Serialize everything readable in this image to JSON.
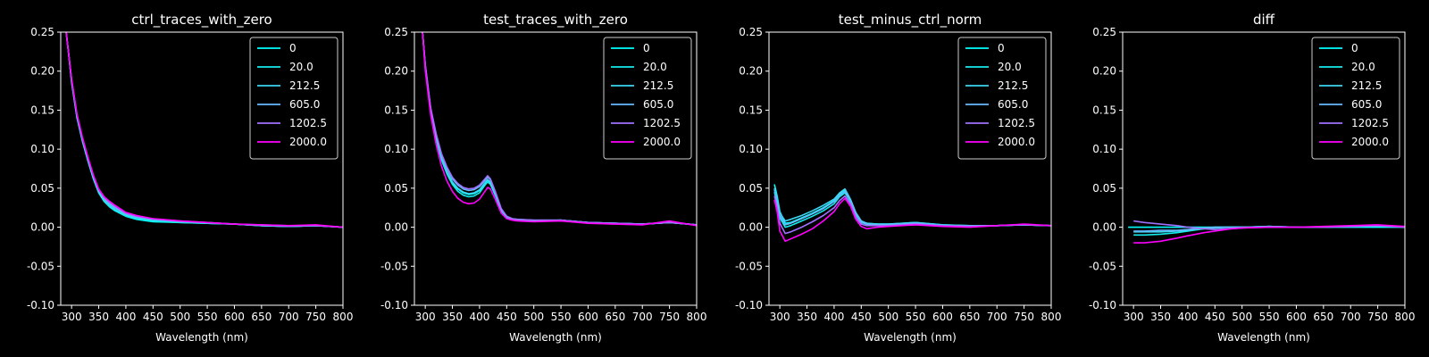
{
  "chart_data": [
    {
      "type": "line",
      "title": "ctrl_traces_with_zero",
      "xlabel": "Wavelength (nm)",
      "ylabel": "",
      "xlim": [
        280,
        800
      ],
      "ylim": [
        -0.1,
        0.25
      ],
      "xticks": [
        300,
        350,
        400,
        450,
        500,
        550,
        600,
        650,
        700,
        750,
        800
      ],
      "yticks": [
        -0.1,
        -0.05,
        0.0,
        0.05,
        0.1,
        0.15,
        0.2,
        0.25
      ],
      "grid": false,
      "legend_position": "top-right",
      "x": [
        290,
        295,
        300,
        310,
        320,
        330,
        340,
        350,
        360,
        370,
        380,
        400,
        420,
        450,
        500,
        550,
        600,
        650,
        700,
        750,
        800
      ],
      "series": [
        {
          "name": "0",
          "color": "#00ffff",
          "values": [
            0.25,
            0.22,
            0.185,
            0.14,
            0.11,
            0.085,
            0.062,
            0.044,
            0.033,
            0.026,
            0.021,
            0.014,
            0.01,
            0.007,
            0.006,
            0.005,
            0.004,
            0.002,
            0.001,
            0.002,
            0.0
          ]
        },
        {
          "name": "20.0",
          "color": "#14ebeb",
          "values": [
            0.25,
            0.22,
            0.186,
            0.141,
            0.111,
            0.086,
            0.063,
            0.045,
            0.034,
            0.027,
            0.022,
            0.015,
            0.011,
            0.008,
            0.006,
            0.005,
            0.004,
            0.002,
            0.001,
            0.002,
            0.0
          ]
        },
        {
          "name": "212.5",
          "color": "#3dd6f2",
          "values": [
            0.25,
            0.22,
            0.187,
            0.142,
            0.112,
            0.087,
            0.064,
            0.046,
            0.035,
            0.028,
            0.023,
            0.016,
            0.012,
            0.009,
            0.007,
            0.005,
            0.004,
            0.002,
            0.001,
            0.002,
            0.0
          ]
        },
        {
          "name": "605.0",
          "color": "#66b8ff",
          "values": [
            0.25,
            0.22,
            0.188,
            0.143,
            0.113,
            0.088,
            0.065,
            0.047,
            0.036,
            0.03,
            0.025,
            0.017,
            0.013,
            0.01,
            0.007,
            0.006,
            0.004,
            0.002,
            0.001,
            0.002,
            0.0
          ]
        },
        {
          "name": "1202.5",
          "color": "#a070ff",
          "values": [
            0.25,
            0.22,
            0.189,
            0.144,
            0.114,
            0.089,
            0.066,
            0.048,
            0.038,
            0.032,
            0.027,
            0.018,
            0.014,
            0.011,
            0.008,
            0.006,
            0.004,
            0.003,
            0.002,
            0.002,
            0.0
          ]
        },
        {
          "name": "2000.0",
          "color": "#ff00ff",
          "values": [
            0.25,
            0.22,
            0.19,
            0.145,
            0.115,
            0.09,
            0.067,
            0.049,
            0.039,
            0.033,
            0.028,
            0.019,
            0.015,
            0.011,
            0.008,
            0.006,
            0.004,
            0.003,
            0.002,
            0.003,
            0.0
          ]
        }
      ]
    },
    {
      "type": "line",
      "title": "test_traces_with_zero",
      "xlabel": "Wavelength (nm)",
      "ylabel": "",
      "xlim": [
        280,
        800
      ],
      "ylim": [
        -0.1,
        0.25
      ],
      "xticks": [
        300,
        350,
        400,
        450,
        500,
        550,
        600,
        650,
        700,
        750,
        800
      ],
      "yticks": [
        -0.1,
        -0.05,
        0.0,
        0.05,
        0.1,
        0.15,
        0.2,
        0.25
      ],
      "grid": false,
      "legend_position": "top-right",
      "x": [
        295,
        300,
        310,
        320,
        330,
        340,
        350,
        360,
        370,
        380,
        390,
        400,
        410,
        415,
        420,
        430,
        440,
        450,
        460,
        470,
        500,
        550,
        600,
        650,
        700,
        750,
        800
      ],
      "series": [
        {
          "name": "0",
          "color": "#00ffff",
          "values": [
            0.25,
            0.205,
            0.15,
            0.115,
            0.088,
            0.07,
            0.057,
            0.049,
            0.044,
            0.042,
            0.043,
            0.047,
            0.056,
            0.06,
            0.057,
            0.04,
            0.022,
            0.013,
            0.01,
            0.009,
            0.008,
            0.009,
            0.006,
            0.005,
            0.004,
            0.006,
            0.003
          ]
        },
        {
          "name": "20.0",
          "color": "#14ebeb",
          "values": [
            0.25,
            0.204,
            0.149,
            0.113,
            0.086,
            0.068,
            0.055,
            0.046,
            0.041,
            0.039,
            0.04,
            0.044,
            0.054,
            0.058,
            0.055,
            0.039,
            0.021,
            0.013,
            0.01,
            0.009,
            0.008,
            0.009,
            0.006,
            0.005,
            0.004,
            0.006,
            0.003
          ]
        },
        {
          "name": "212.5",
          "color": "#3dd6f2",
          "values": [
            0.25,
            0.206,
            0.151,
            0.116,
            0.089,
            0.071,
            0.058,
            0.05,
            0.045,
            0.043,
            0.044,
            0.048,
            0.057,
            0.061,
            0.058,
            0.041,
            0.022,
            0.013,
            0.01,
            0.009,
            0.008,
            0.009,
            0.006,
            0.005,
            0.004,
            0.006,
            0.003
          ]
        },
        {
          "name": "605.0",
          "color": "#66b8ff",
          "values": [
            0.25,
            0.207,
            0.152,
            0.118,
            0.092,
            0.075,
            0.062,
            0.054,
            0.049,
            0.047,
            0.048,
            0.052,
            0.06,
            0.064,
            0.061,
            0.043,
            0.023,
            0.014,
            0.011,
            0.01,
            0.009,
            0.009,
            0.006,
            0.005,
            0.004,
            0.006,
            0.003
          ]
        },
        {
          "name": "1202.5",
          "color": "#a070ff",
          "values": [
            0.25,
            0.208,
            0.153,
            0.12,
            0.094,
            0.077,
            0.064,
            0.056,
            0.051,
            0.049,
            0.05,
            0.054,
            0.062,
            0.066,
            0.062,
            0.044,
            0.024,
            0.014,
            0.011,
            0.01,
            0.009,
            0.009,
            0.006,
            0.005,
            0.004,
            0.006,
            0.003
          ]
        },
        {
          "name": "2000.0",
          "color": "#ff00ff",
          "values": [
            0.25,
            0.2,
            0.144,
            0.106,
            0.078,
            0.059,
            0.046,
            0.037,
            0.032,
            0.03,
            0.031,
            0.036,
            0.046,
            0.051,
            0.049,
            0.034,
            0.018,
            0.011,
            0.009,
            0.008,
            0.007,
            0.008,
            0.005,
            0.004,
            0.003,
            0.008,
            0.002
          ]
        }
      ]
    },
    {
      "type": "line",
      "title": "test_minus_ctrl_norm",
      "xlabel": "Wavelength (nm)",
      "ylabel": "",
      "xlim": [
        280,
        800
      ],
      "ylim": [
        -0.1,
        0.25
      ],
      "xticks": [
        300,
        350,
        400,
        450,
        500,
        550,
        600,
        650,
        700,
        750,
        800
      ],
      "yticks": [
        -0.1,
        -0.05,
        0.0,
        0.05,
        0.1,
        0.15,
        0.2,
        0.25
      ],
      "grid": false,
      "legend_position": "top-right",
      "x": [
        290,
        295,
        300,
        310,
        320,
        340,
        360,
        380,
        400,
        410,
        420,
        430,
        440,
        450,
        460,
        480,
        500,
        550,
        600,
        650,
        700,
        750,
        800
      ],
      "series": [
        {
          "name": "0",
          "color": "#00ffff",
          "values": [
            0.055,
            0.04,
            0.02,
            0.005,
            0.006,
            0.012,
            0.018,
            0.025,
            0.034,
            0.042,
            0.047,
            0.035,
            0.018,
            0.008,
            0.005,
            0.004,
            0.004,
            0.006,
            0.003,
            0.002,
            0.002,
            0.003,
            0.002
          ]
        },
        {
          "name": "20.0",
          "color": "#14ebeb",
          "values": [
            0.045,
            0.03,
            0.012,
            0.0,
            0.002,
            0.008,
            0.014,
            0.021,
            0.03,
            0.039,
            0.044,
            0.033,
            0.016,
            0.006,
            0.004,
            0.003,
            0.003,
            0.005,
            0.002,
            0.002,
            0.002,
            0.003,
            0.002
          ]
        },
        {
          "name": "212.5",
          "color": "#3dd6f2",
          "values": [
            0.05,
            0.035,
            0.018,
            0.008,
            0.01,
            0.015,
            0.021,
            0.028,
            0.036,
            0.044,
            0.049,
            0.036,
            0.019,
            0.008,
            0.005,
            0.004,
            0.004,
            0.006,
            0.003,
            0.002,
            0.002,
            0.003,
            0.002
          ]
        },
        {
          "name": "605.0",
          "color": "#66b8ff",
          "values": [
            0.048,
            0.032,
            0.015,
            0.003,
            0.005,
            0.011,
            0.017,
            0.024,
            0.033,
            0.041,
            0.046,
            0.034,
            0.017,
            0.007,
            0.004,
            0.003,
            0.003,
            0.005,
            0.002,
            0.002,
            0.002,
            0.003,
            0.002
          ]
        },
        {
          "name": "1202.5",
          "color": "#a070ff",
          "values": [
            0.04,
            0.025,
            0.005,
            -0.008,
            -0.006,
            0.0,
            0.007,
            0.015,
            0.025,
            0.034,
            0.04,
            0.03,
            0.013,
            0.004,
            0.002,
            0.002,
            0.002,
            0.004,
            0.002,
            0.001,
            0.002,
            0.003,
            0.002
          ]
        },
        {
          "name": "2000.0",
          "color": "#ff00ff",
          "values": [
            0.035,
            0.02,
            -0.005,
            -0.018,
            -0.015,
            -0.009,
            -0.002,
            0.008,
            0.02,
            0.03,
            0.037,
            0.027,
            0.01,
            0.001,
            -0.002,
            0.0,
            0.001,
            0.003,
            0.001,
            0.0,
            0.002,
            0.004,
            0.002
          ]
        }
      ]
    },
    {
      "type": "line",
      "title": "diff",
      "xlabel": "Wavelength (nm)",
      "ylabel": "",
      "xlim": [
        280,
        800
      ],
      "ylim": [
        -0.1,
        0.25
      ],
      "xticks": [
        300,
        350,
        400,
        450,
        500,
        550,
        600,
        650,
        700,
        750,
        800
      ],
      "yticks": [
        -0.1,
        -0.05,
        0.0,
        0.05,
        0.1,
        0.15,
        0.2,
        0.25
      ],
      "grid": false,
      "legend_position": "top-right",
      "x": [
        290,
        300,
        320,
        350,
        380,
        400,
        430,
        450,
        480,
        500,
        550,
        600,
        650,
        700,
        750,
        800
      ],
      "series": [
        {
          "name": "0",
          "color": "#00ffff",
          "values": [
            0.0,
            0.0,
            0.0,
            0.0,
            0.0,
            0.0,
            0.0,
            0.0,
            0.0,
            0.0,
            0.0,
            0.0,
            0.0,
            0.0,
            0.0,
            0.0
          ]
        },
        {
          "name": "20.0",
          "color": "#14ebeb",
          "values": [
            null,
            -0.01,
            -0.01,
            -0.009,
            -0.007,
            -0.005,
            -0.002,
            0.0,
            0.0,
            0.0,
            0.001,
            0.0,
            0.0,
            0.001,
            0.002,
            0.0
          ]
        },
        {
          "name": "212.5",
          "color": "#3dd6f2",
          "values": [
            null,
            -0.006,
            -0.006,
            -0.006,
            -0.005,
            -0.004,
            -0.002,
            -0.001,
            0.0,
            0.0,
            0.001,
            0.0,
            0.0,
            0.001,
            0.002,
            0.0
          ]
        },
        {
          "name": "605.0",
          "color": "#66b8ff",
          "values": [
            null,
            -0.005,
            -0.005,
            -0.004,
            -0.004,
            -0.003,
            -0.001,
            0.0,
            0.0,
            0.0,
            0.001,
            0.0,
            0.0,
            0.001,
            0.002,
            0.0
          ]
        },
        {
          "name": "1202.5",
          "color": "#a070ff",
          "values": [
            null,
            0.008,
            0.006,
            0.004,
            0.002,
            0.0,
            -0.002,
            -0.003,
            -0.002,
            -0.001,
            0.0,
            0.0,
            0.0,
            0.001,
            0.002,
            0.0
          ]
        },
        {
          "name": "2000.0",
          "color": "#ff00ff",
          "values": [
            null,
            -0.02,
            -0.02,
            -0.018,
            -0.014,
            -0.011,
            -0.007,
            -0.005,
            -0.002,
            -0.001,
            0.0,
            0.0,
            0.001,
            0.002,
            0.003,
            0.001
          ]
        }
      ]
    }
  ]
}
